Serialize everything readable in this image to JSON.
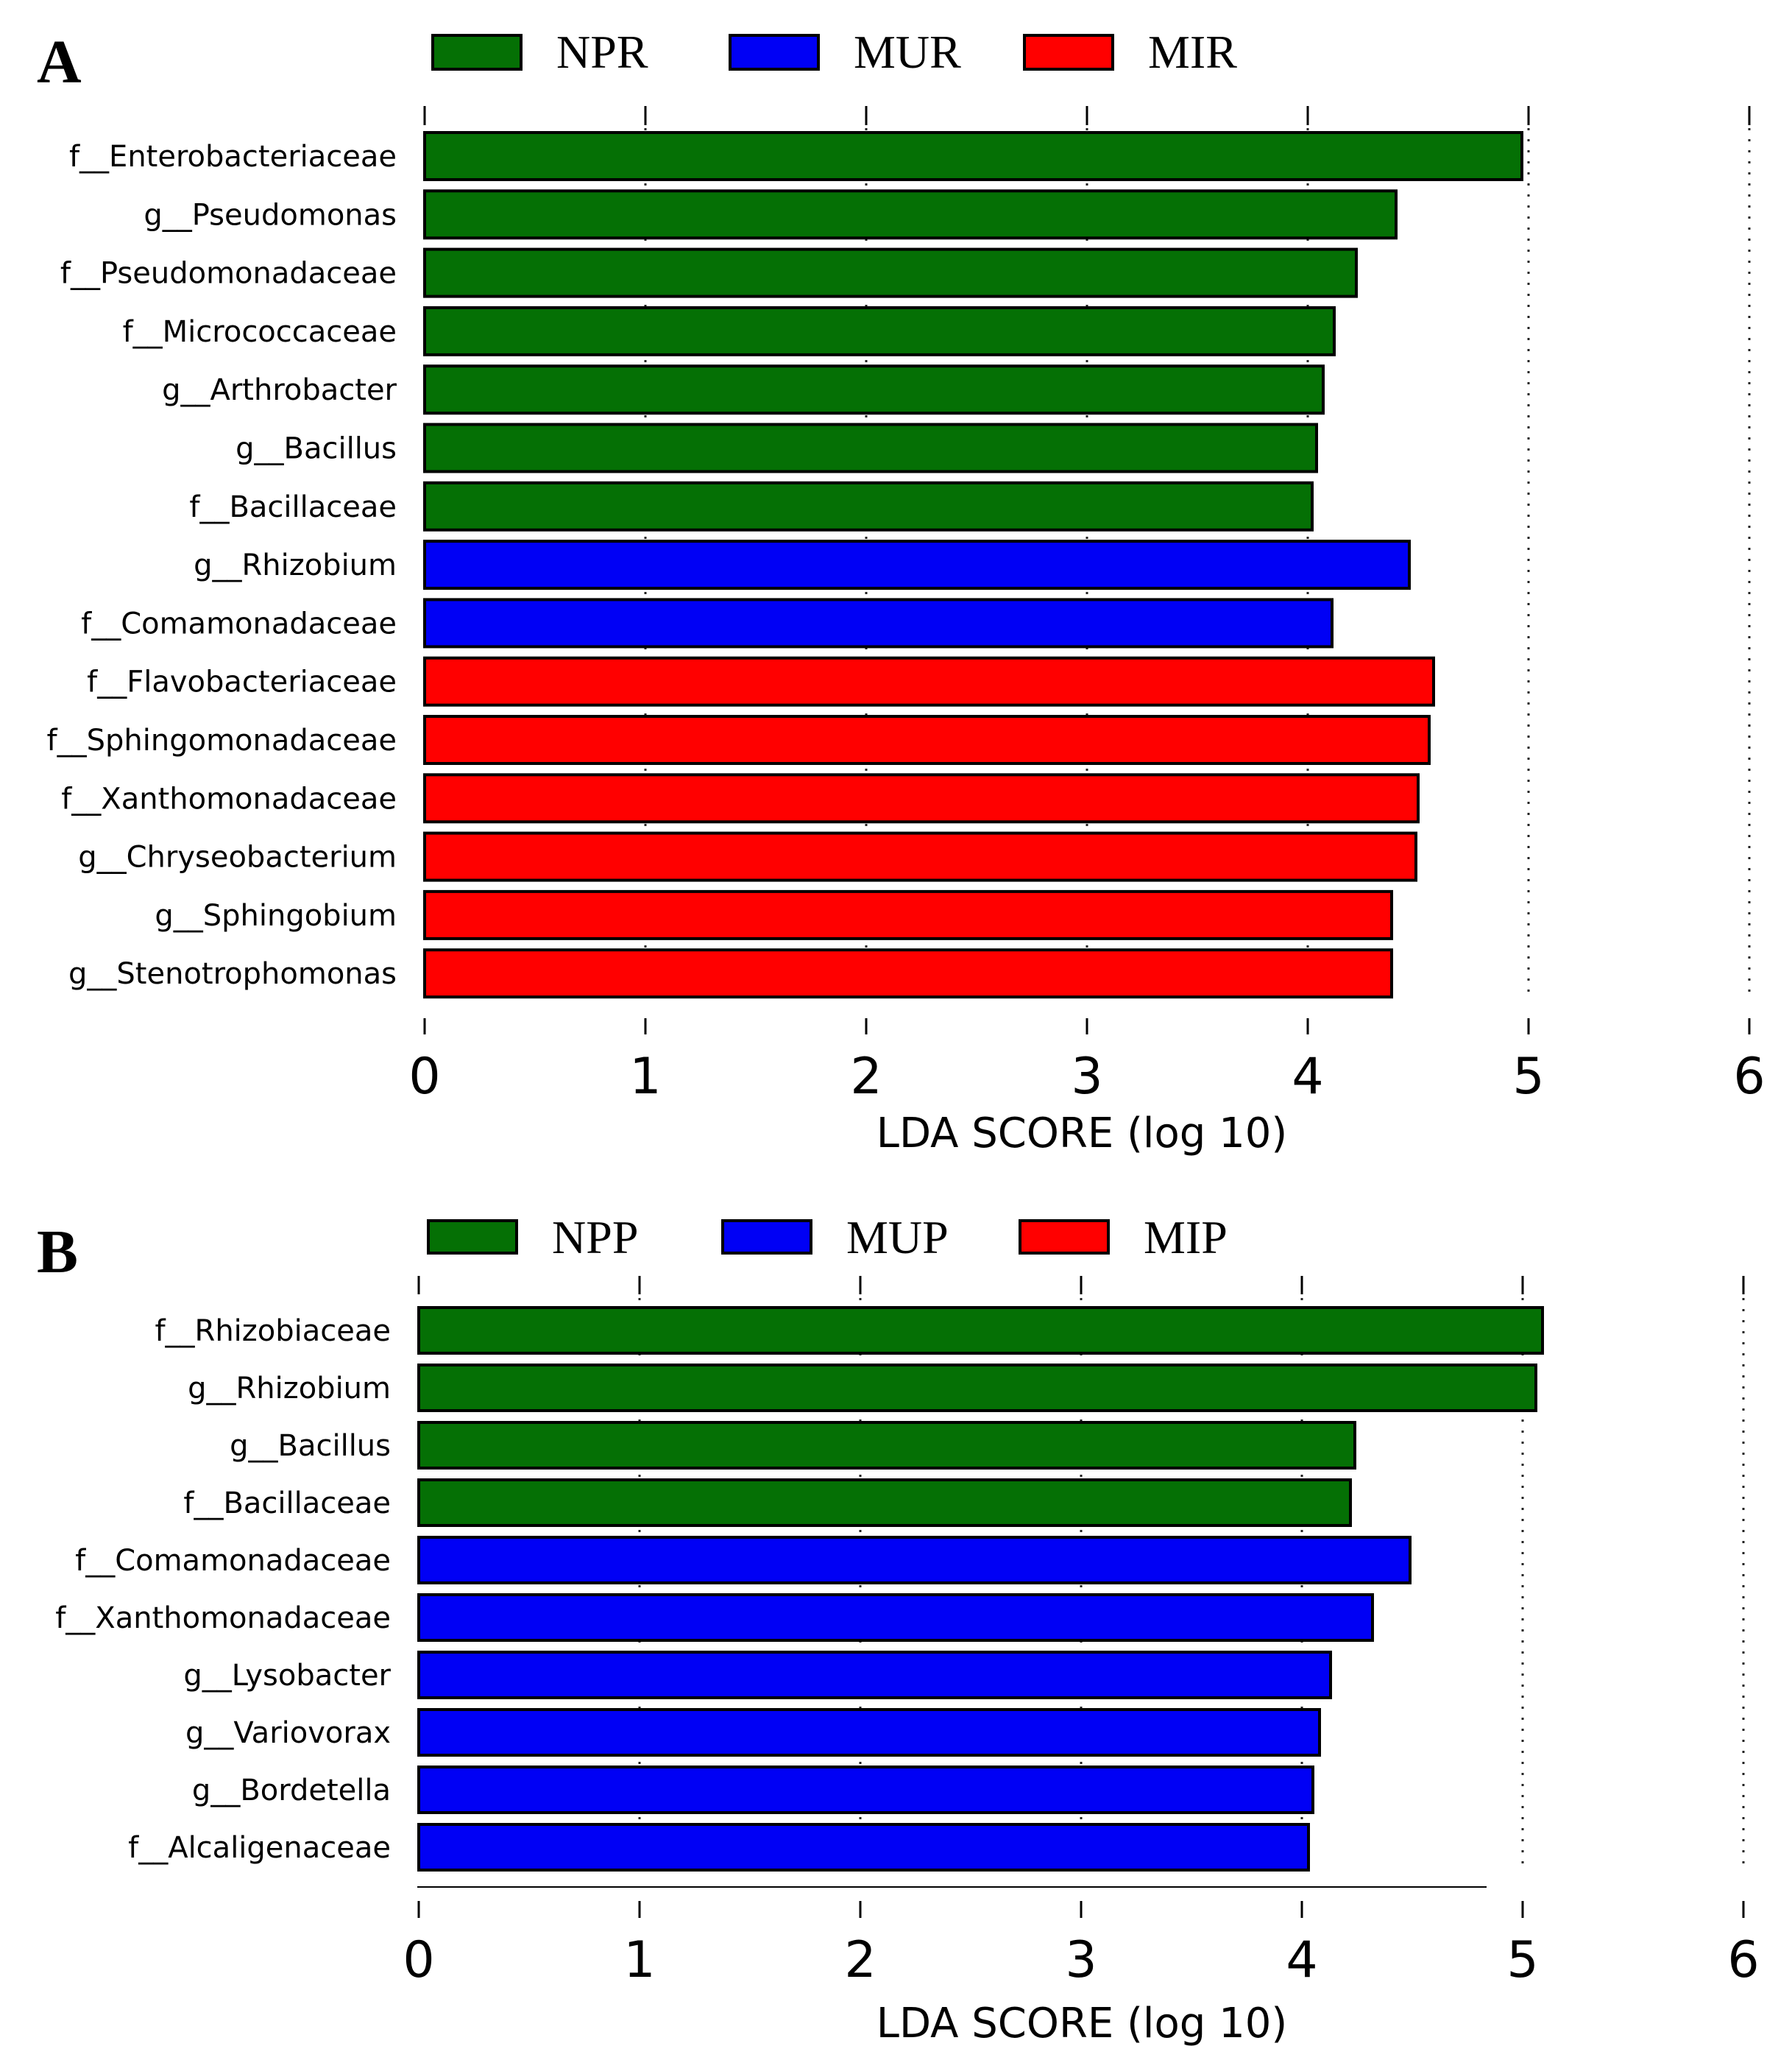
{
  "colors": {
    "green": "#057005",
    "blue": "#0000f5",
    "red": "#ff0000"
  },
  "chart_data": [
    {
      "panel": "A",
      "type": "bar",
      "orientation": "horizontal",
      "legend": [
        {
          "label": "NPR",
          "color": "#057005"
        },
        {
          "label": "MUR",
          "color": "#0000f5"
        },
        {
          "label": "MIR",
          "color": "#ff0000"
        }
      ],
      "categories": [
        "f__Enterobacteriaceae",
        "g__Pseudomonas",
        "f__Pseudomonadaceae",
        "f__Micrococcaceae",
        "g__Arthrobacter",
        "g__Bacillus",
        "f__Bacillaceae",
        "g__Rhizobium",
        "f__Comamonadaceae",
        "f__Flavobacteriaceae",
        "f__Sphingomonadaceae",
        "f__Xanthomonadaceae",
        "g__Chryseobacterium",
        "g__Sphingobium",
        "g__Stenotrophomonas"
      ],
      "values": [
        4.97,
        4.4,
        4.22,
        4.12,
        4.07,
        4.04,
        4.02,
        4.46,
        4.11,
        4.57,
        4.55,
        4.5,
        4.49,
        4.38,
        4.38
      ],
      "groups": [
        "NPR",
        "NPR",
        "NPR",
        "NPR",
        "NPR",
        "NPR",
        "NPR",
        "MUR",
        "MUR",
        "MIR",
        "MIR",
        "MIR",
        "MIR",
        "MIR",
        "MIR"
      ],
      "xlabel": "LDA SCORE (log 10)",
      "xlim": [
        0,
        6
      ],
      "xticks": [
        "0",
        "1",
        "2",
        "3",
        "4",
        "5",
        "6"
      ]
    },
    {
      "panel": "B",
      "type": "bar",
      "orientation": "horizontal",
      "legend": [
        {
          "label": "NPP",
          "color": "#057005"
        },
        {
          "label": "MUP",
          "color": "#0000f5"
        },
        {
          "label": "MIP",
          "color": "#ff0000"
        }
      ],
      "categories": [
        "f__Rhizobiaceae",
        "g__Rhizobium",
        "g__Bacillus",
        "f__Bacillaceae",
        "f__Comamonadaceae",
        "f__Xanthomonadaceae",
        "g__Lysobacter",
        "g__Variovorax",
        "g__Bordetella",
        "f__Alcaligenaceae"
      ],
      "values": [
        5.09,
        5.06,
        4.24,
        4.22,
        4.49,
        4.32,
        4.13,
        4.08,
        4.05,
        4.03
      ],
      "groups": [
        "NPP",
        "NPP",
        "NPP",
        "NPP",
        "MUP",
        "MUP",
        "MUP",
        "MUP",
        "MUP",
        "MUP"
      ],
      "xlabel": "LDA SCORE (log 10)",
      "xlim": [
        0,
        6
      ],
      "xticks": [
        "0",
        "1",
        "2",
        "3",
        "4",
        "5",
        "6"
      ]
    }
  ]
}
